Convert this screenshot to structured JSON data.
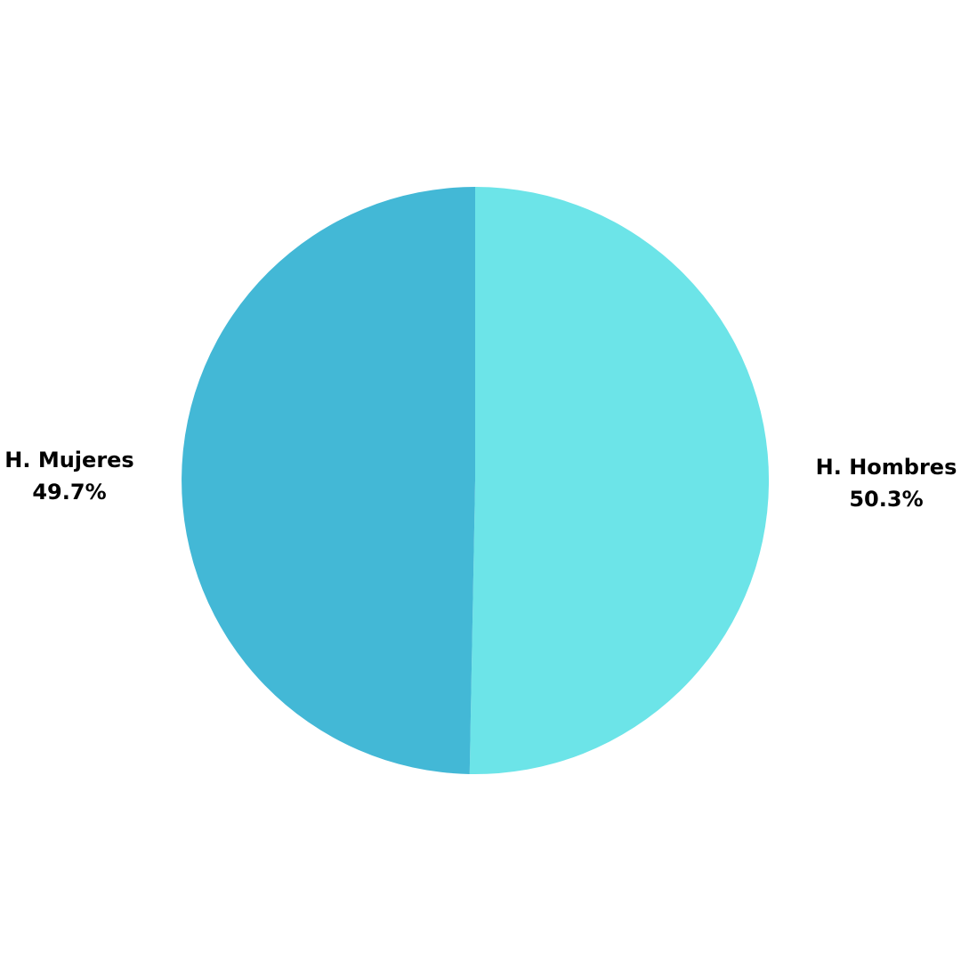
{
  "chart_data": {
    "type": "pie",
    "slices": [
      {
        "label": "H. Hombres",
        "value": 50.3,
        "value_label": "50.3%",
        "color": "#6ce4e8"
      },
      {
        "label": "H. Mujeres",
        "value": 49.7,
        "value_label": "49.7%",
        "color": "#43b8d6"
      }
    ],
    "start_angle_deg": 0,
    "direction": "clockwise",
    "legend": "none",
    "labels_placement": "outside"
  },
  "colors": {
    "background": "#ffffff",
    "label_text": "#000000"
  }
}
